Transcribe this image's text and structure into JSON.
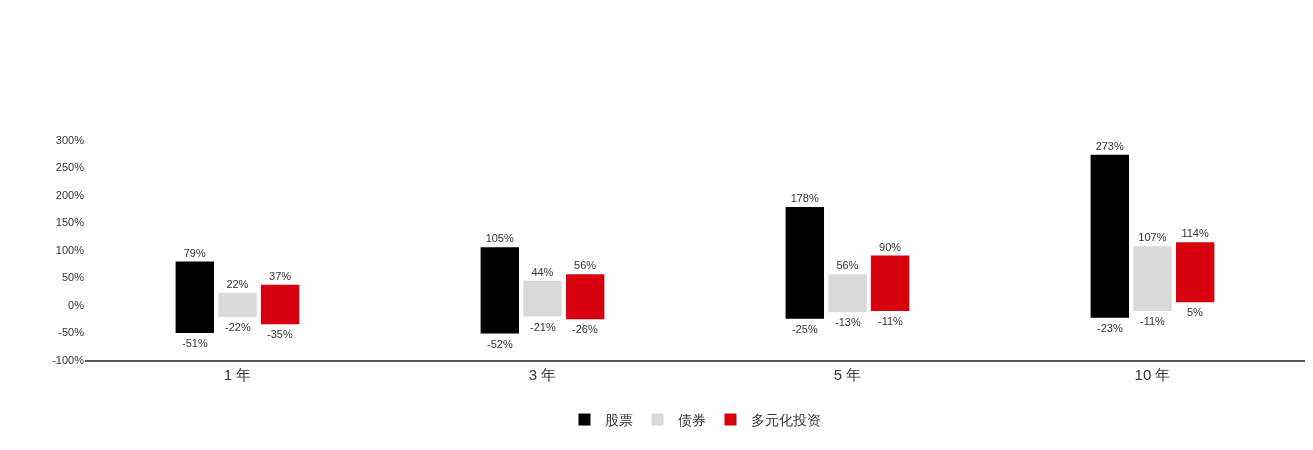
{
  "chart_data": {
    "type": "bar",
    "categories": [
      "1 年",
      "3 年",
      "5 年",
      "10 年"
    ],
    "series": [
      {
        "name": "股票",
        "color": "#000000",
        "base": [
          -51,
          -52,
          -25,
          -23
        ],
        "values": [
          130,
          157,
          203,
          296
        ],
        "value_labels": [
          "79%",
          "105%",
          "178%",
          "273%"
        ]
      },
      {
        "name": "债券",
        "color": "#d9d9d9",
        "base": [
          -22,
          -21,
          -13,
          -11
        ],
        "values": [
          44,
          65,
          69,
          118
        ],
        "value_labels": [
          "22%",
          "44%",
          "56%",
          "107%"
        ]
      },
      {
        "name": "多元化投资",
        "color": "#d7000f",
        "base": [
          -35,
          -26,
          -11,
          5
        ],
        "values": [
          72,
          82,
          101,
          109
        ],
        "value_labels": [
          "37%",
          "56%",
          "90%",
          "114%"
        ]
      }
    ],
    "ylim": [
      -100,
      300
    ],
    "yticks": [
      {
        "value": -100,
        "label": "-100%"
      },
      {
        "value": -50,
        "label": "-50%"
      },
      {
        "value": 0,
        "label": "0%"
      },
      {
        "value": 50,
        "label": "50%"
      },
      {
        "value": 100,
        "label": "100%"
      },
      {
        "value": 150,
        "label": "150%"
      },
      {
        "value": 200,
        "label": "200%"
      },
      {
        "value": 250,
        "label": "250%"
      },
      {
        "value": 300,
        "label": "300%"
      }
    ],
    "annotations": [
      "-51%",
      "-52%",
      "-25%",
      "-23%",
      "-22%",
      "-21%",
      "-13%",
      "-11%",
      "-35%",
      "-26%",
      "-11%",
      "5%"
    ],
    "legend": "bottom"
  }
}
